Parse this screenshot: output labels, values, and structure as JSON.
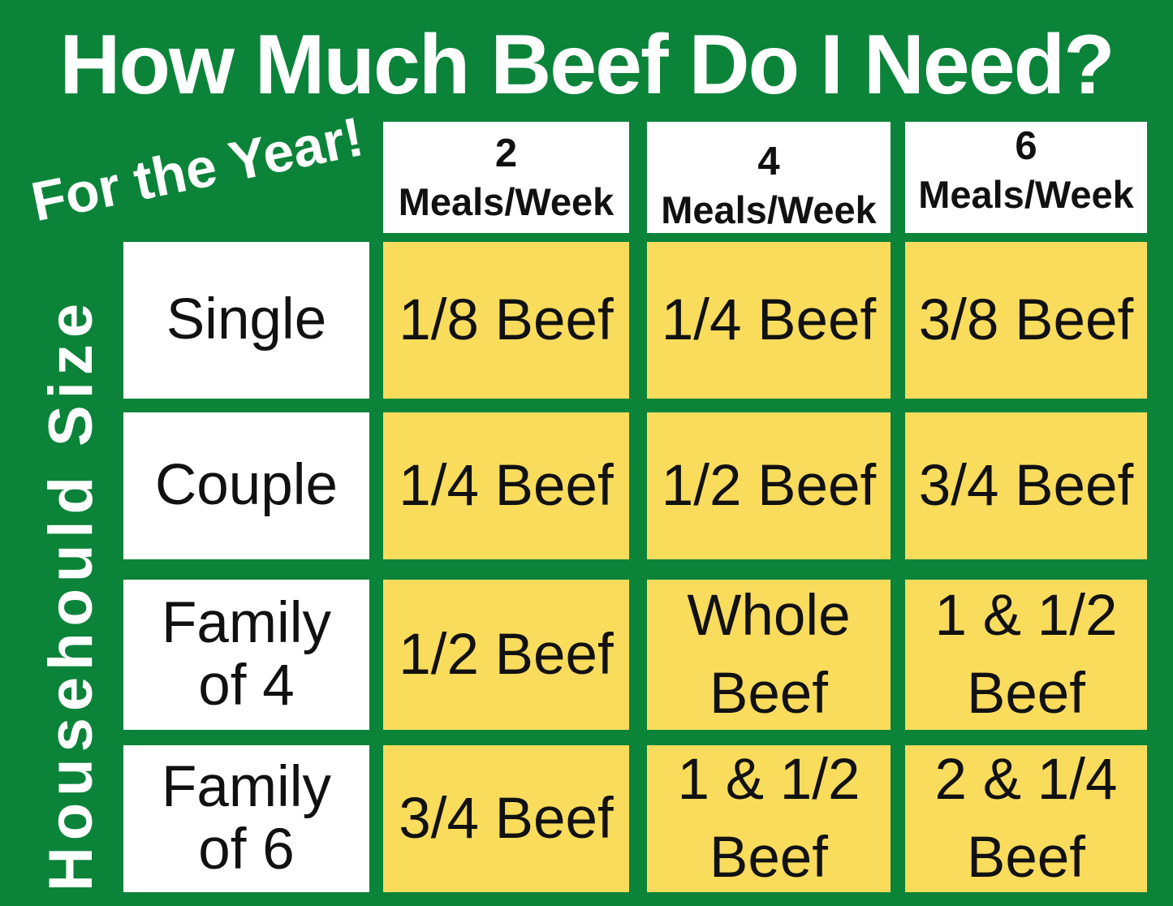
{
  "title": "How Much Beef Do I Need?",
  "subtitle": "For the Year!",
  "axis_label": "Househould Size",
  "colors": {
    "background_green": "#0B8339",
    "cell_yellow": "#F9DC5C",
    "box_white": "#FFFFFF",
    "text_black": "#111111",
    "text_white": "#FFFFFF"
  },
  "chart_data": {
    "type": "table",
    "title": "How Much Beef Do I Need?",
    "subtitle": "For the Year!",
    "row_axis_label": "Househould Size",
    "column_axis_meaning": "Meals per week",
    "column_headers": [
      {
        "number": "2",
        "label": "Meals/Week"
      },
      {
        "number": "4",
        "label": "Meals/Week"
      },
      {
        "number": "6",
        "label": "Meals/Week"
      }
    ],
    "rows": [
      {
        "label": "Single",
        "cells": [
          "1/8 Beef",
          "1/4 Beef",
          "3/8 Beef"
        ]
      },
      {
        "label": "Couple",
        "cells": [
          "1/4 Beef",
          "1/2 Beef",
          "3/4 Beef"
        ]
      },
      {
        "label": "Family of 4",
        "cells": [
          "1/2 Beef",
          "Whole Beef",
          "1 & 1/2 Beef"
        ]
      },
      {
        "label": "Family of 6",
        "cells": [
          "3/4 Beef",
          "1 & 1/2 Beef",
          "2 & 1/4 Beef"
        ]
      }
    ]
  }
}
